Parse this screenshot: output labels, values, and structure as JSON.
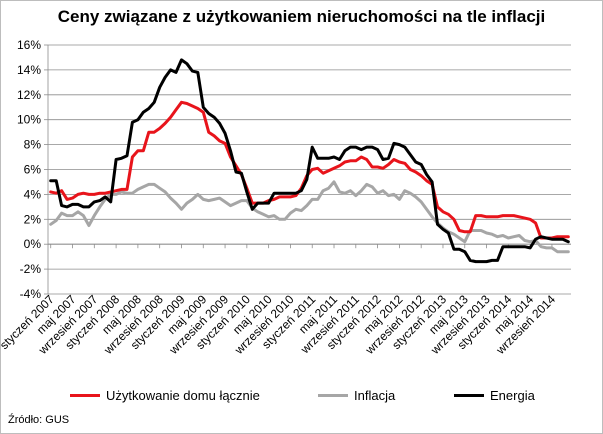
{
  "title": "Ceny związane z użytkowaniem nieruchomości na tle inflacji",
  "source": "Źródło: GUS",
  "chart_data": {
    "type": "line",
    "title": "Ceny związane z użytkowaniem nieruchomości na tle inflacji",
    "ylim": [
      -4,
      16
    ],
    "yticks": [
      "-4%",
      "-2%",
      "0%",
      "2%",
      "4%",
      "6%",
      "8%",
      "10%",
      "12%",
      "14%",
      "16%"
    ],
    "x_tick_labels": [
      "styczeń 2007",
      "maj 2007",
      "wrzesień 2007",
      "styczeń 2008",
      "maj 2008",
      "wrzesień 2008",
      "styczeń 2009",
      "maj 2009",
      "wrzesień 2009",
      "styczeń 2010",
      "maj 2010",
      "wrzesień 2010",
      "styczeń 2011",
      "maj 2011",
      "wrzesień 2011",
      "styczeń 2012",
      "maj 2012",
      "wrzesień 2012",
      "styczeń 2013",
      "maj 2013",
      "wrzesień 2013",
      "styczeń 2014",
      "maj 2014",
      "wrzesień 2014"
    ],
    "x_period": "monthly, styczeń 2007 – grudzień 2014",
    "grid": true,
    "legend_position": "bottom",
    "series": [
      {
        "name": "Użytkowanie domu łącznie",
        "color": "#e8141b",
        "values": [
          4.2,
          4.1,
          4.3,
          3.6,
          3.7,
          4.0,
          4.1,
          4.0,
          4.0,
          4.1,
          4.1,
          4.2,
          4.3,
          4.4,
          4.4,
          7.0,
          7.5,
          7.5,
          9.0,
          9.0,
          9.3,
          9.7,
          10.2,
          10.8,
          11.4,
          11.3,
          11.1,
          10.9,
          10.6,
          9.0,
          8.7,
          8.3,
          8.1,
          7.0,
          6.3,
          5.6,
          4.5,
          3.3,
          3.3,
          3.3,
          3.5,
          3.6,
          3.8,
          3.8,
          3.8,
          3.9,
          4.5,
          5.5,
          6.0,
          6.1,
          5.7,
          5.9,
          6.1,
          6.3,
          6.6,
          6.7,
          6.7,
          7.0,
          6.8,
          6.2,
          6.2,
          6.1,
          6.4,
          6.8,
          6.6,
          6.5,
          6.0,
          5.8,
          5.5,
          5.1,
          4.8,
          3.0,
          2.6,
          2.4,
          2.0,
          1.1,
          1.0,
          1.0,
          2.3,
          2.3,
          2.2,
          2.2,
          2.2,
          2.3,
          2.3,
          2.3,
          2.2,
          2.1,
          2.0,
          1.7,
          0.5,
          0.5,
          0.5,
          0.6,
          0.6,
          0.6
        ]
      },
      {
        "name": "Inflacja",
        "color": "#a6a6a6",
        "values": [
          1.6,
          1.9,
          2.5,
          2.3,
          2.3,
          2.6,
          2.3,
          1.5,
          2.3,
          3.0,
          3.6,
          4.0,
          4.0,
          4.2,
          4.1,
          4.1,
          4.4,
          4.6,
          4.8,
          4.8,
          4.5,
          4.2,
          3.7,
          3.3,
          2.8,
          3.3,
          3.6,
          4.0,
          3.6,
          3.5,
          3.6,
          3.7,
          3.4,
          3.1,
          3.3,
          3.5,
          3.5,
          2.9,
          2.6,
          2.4,
          2.2,
          2.3,
          2.0,
          2.0,
          2.5,
          2.8,
          2.7,
          3.1,
          3.6,
          3.6,
          4.3,
          4.5,
          5.0,
          4.2,
          4.1,
          4.3,
          3.9,
          4.3,
          4.8,
          4.6,
          4.1,
          4.3,
          3.9,
          4.0,
          3.6,
          4.3,
          4.1,
          3.8,
          3.4,
          2.8,
          2.2,
          1.7,
          1.3,
          1.0,
          0.8,
          0.5,
          0.2,
          1.1,
          1.1,
          1.1,
          0.9,
          0.8,
          0.6,
          0.7,
          0.5,
          0.6,
          0.7,
          0.3,
          0.2,
          0.3,
          -0.2,
          -0.3,
          -0.3,
          -0.6,
          -0.6,
          -0.6
        ]
      },
      {
        "name": "Energia",
        "color": "#000000",
        "values": [
          5.1,
          5.1,
          3.1,
          3.0,
          3.2,
          3.2,
          3.0,
          3.0,
          3.4,
          3.5,
          3.8,
          3.4,
          6.8,
          6.9,
          7.1,
          9.8,
          10.0,
          10.6,
          10.9,
          11.4,
          12.6,
          13.4,
          14.0,
          13.8,
          14.8,
          14.5,
          13.9,
          13.8,
          11.0,
          10.5,
          10.2,
          9.7,
          8.9,
          7.5,
          5.8,
          5.7,
          4.2,
          2.8,
          3.3,
          3.3,
          3.3,
          4.1,
          4.1,
          4.1,
          4.1,
          4.1,
          4.3,
          5.2,
          7.8,
          6.9,
          6.9,
          6.9,
          7.0,
          6.8,
          7.5,
          7.8,
          7.8,
          7.6,
          7.8,
          7.8,
          7.6,
          6.8,
          6.9,
          8.1,
          8.0,
          7.8,
          7.2,
          6.6,
          6.4,
          5.6,
          5.0,
          1.6,
          1.2,
          0.9,
          -0.4,
          -0.4,
          -0.6,
          -1.3,
          -1.4,
          -1.4,
          -1.4,
          -1.3,
          -1.3,
          -0.2,
          -0.2,
          -0.2,
          -0.2,
          -0.2,
          -0.3,
          0.4,
          0.6,
          0.5,
          0.4,
          0.4,
          0.4,
          0.2
        ]
      }
    ]
  }
}
